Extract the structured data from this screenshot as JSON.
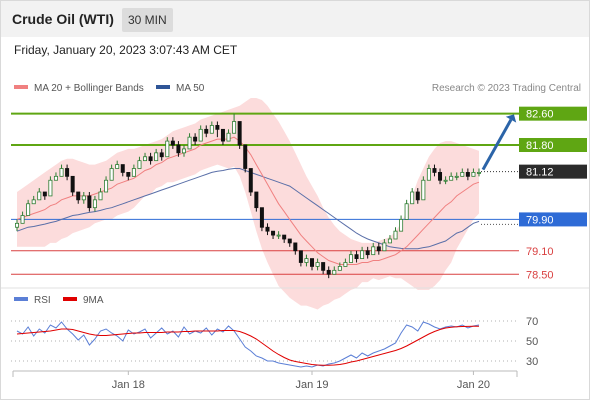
{
  "header": {
    "title": "Crude Oil (WTI)",
    "timeframe": "30 MIN",
    "datetime": "Friday, January 20, 2023 3:07:43 AM CET"
  },
  "legend": {
    "items": [
      {
        "label": "MA 20 + Bollinger Bands",
        "color": "#f08080"
      },
      {
        "label": "MA 50",
        "color": "#2f5597"
      }
    ],
    "credit": "Research © 2023 Trading Central"
  },
  "rsi_legend": {
    "items": [
      {
        "label": "RSI",
        "color": "#5b7fd6"
      },
      {
        "label": "9MA",
        "color": "#e00000"
      }
    ]
  },
  "chart_data": [
    {
      "type": "candlestick",
      "y_range": [
        78.2,
        83.0
      ],
      "x_ticks": [
        "Jan 18",
        "Jan 19",
        "Jan 20"
      ],
      "levels": [
        {
          "value": 82.6,
          "label": "82.60",
          "type": "resistance"
        },
        {
          "value": 81.8,
          "label": "81.80",
          "type": "resistance"
        },
        {
          "value": 81.12,
          "label": "81.12",
          "type": "last"
        },
        {
          "value": 79.9,
          "label": "79.90",
          "type": "pivot"
        },
        {
          "value": 79.1,
          "label": "79.10",
          "type": "support"
        },
        {
          "value": 78.5,
          "label": "78.50",
          "type": "support"
        }
      ],
      "colors": {
        "up": "#2e7d32",
        "down": "#111111",
        "resistance": "#5fa613",
        "pivot": "#2e6bd6",
        "support": "#d94040",
        "last": "#333333",
        "arrow": "#2b64a8",
        "band": "#fcdcdc",
        "ma20": "#f08080",
        "ma50": "#5a6fa8"
      },
      "close": [
        79.8,
        80.0,
        80.3,
        80.4,
        80.6,
        80.5,
        80.9,
        81.0,
        81.2,
        81.0,
        80.6,
        80.4,
        80.5,
        80.2,
        80.4,
        80.6,
        80.9,
        81.2,
        81.3,
        81.1,
        81.0,
        81.2,
        81.4,
        81.5,
        81.4,
        81.6,
        81.5,
        81.9,
        81.8,
        81.6,
        81.7,
        82.0,
        81.9,
        82.2,
        82.1,
        82.3,
        82.2,
        81.9,
        82.1,
        82.4,
        81.8,
        81.2,
        80.6,
        80.2,
        79.7,
        79.6,
        79.5,
        79.5,
        79.4,
        79.3,
        79.1,
        78.8,
        78.9,
        78.7,
        78.8,
        78.6,
        78.5,
        78.6,
        78.7,
        78.8,
        79.0,
        78.9,
        79.1,
        79.0,
        79.2,
        79.1,
        79.3,
        79.4,
        79.6,
        79.9,
        80.3,
        80.6,
        80.4,
        80.9,
        81.2,
        81.1,
        80.9,
        80.9,
        81.0,
        81.0,
        81.1,
        81.0,
        81.1,
        81.1
      ],
      "high": [
        79.9,
        80.1,
        80.4,
        80.5,
        80.7,
        80.6,
        81.0,
        81.1,
        81.3,
        81.3,
        81.0,
        80.6,
        80.6,
        80.6,
        80.5,
        80.7,
        81.0,
        81.3,
        81.4,
        81.3,
        81.1,
        81.3,
        81.5,
        81.6,
        81.6,
        81.7,
        81.7,
        82.0,
        82.0,
        81.9,
        81.8,
        82.1,
        82.1,
        82.3,
        82.3,
        82.4,
        82.4,
        82.2,
        82.2,
        82.6,
        82.4,
        81.8,
        81.2,
        80.6,
        80.2,
        79.8,
        79.6,
        79.6,
        79.5,
        79.4,
        79.3,
        79.1,
        79.0,
        78.9,
        78.9,
        78.8,
        78.7,
        78.7,
        78.8,
        78.9,
        79.1,
        79.1,
        79.2,
        79.2,
        79.3,
        79.3,
        79.4,
        79.5,
        79.7,
        80.0,
        80.4,
        80.7,
        80.7,
        81.0,
        81.3,
        81.3,
        81.2,
        81.0,
        81.1,
        81.1,
        81.2,
        81.2,
        81.2,
        81.2
      ],
      "low": [
        79.6,
        79.8,
        80.0,
        80.3,
        80.4,
        80.4,
        80.5,
        80.9,
        81.0,
        80.9,
        80.5,
        80.3,
        80.3,
        80.1,
        80.1,
        80.4,
        80.6,
        80.9,
        81.2,
        81.0,
        80.9,
        81.0,
        81.2,
        81.4,
        81.3,
        81.4,
        81.4,
        81.5,
        81.7,
        81.5,
        81.5,
        81.7,
        81.8,
        81.9,
        82.0,
        82.1,
        82.0,
        81.8,
        81.9,
        82.1,
        81.7,
        81.1,
        80.5,
        80.1,
        79.6,
        79.5,
        79.4,
        79.4,
        79.3,
        79.2,
        79.0,
        78.7,
        78.7,
        78.6,
        78.6,
        78.5,
        78.4,
        78.5,
        78.6,
        78.7,
        78.8,
        78.8,
        78.9,
        78.9,
        79.0,
        79.0,
        79.1,
        79.3,
        79.4,
        79.6,
        79.9,
        80.3,
        80.3,
        80.4,
        80.9,
        81.0,
        80.8,
        80.8,
        80.9,
        80.9,
        81.0,
        80.9,
        81.0,
        81.0
      ],
      "ma20": [
        79.9,
        79.95,
        80.0,
        80.05,
        80.1,
        80.15,
        80.25,
        80.3,
        80.4,
        80.45,
        80.5,
        80.5,
        80.5,
        80.5,
        80.55,
        80.6,
        80.65,
        80.7,
        80.8,
        80.85,
        80.9,
        80.95,
        81.05,
        81.15,
        81.2,
        81.3,
        81.35,
        81.45,
        81.5,
        81.55,
        81.6,
        81.65,
        81.7,
        81.8,
        81.85,
        81.9,
        81.95,
        81.95,
        81.95,
        82.0,
        81.9,
        81.75,
        81.55,
        81.3,
        81.05,
        80.8,
        80.55,
        80.3,
        80.1,
        79.9,
        79.7,
        79.5,
        79.35,
        79.2,
        79.05,
        78.95,
        78.85,
        78.8,
        78.75,
        78.75,
        78.75,
        78.75,
        78.8,
        78.8,
        78.85,
        78.85,
        78.9,
        78.95,
        79.0,
        79.1,
        79.2,
        79.35,
        79.5,
        79.65,
        79.8,
        79.95,
        80.1,
        80.25,
        80.35,
        80.5,
        80.6,
        80.7,
        80.8,
        80.85
      ],
      "ma50": [
        79.6,
        79.65,
        79.7,
        79.72,
        79.75,
        79.78,
        79.82,
        79.85,
        79.9,
        79.95,
        80.0,
        80.02,
        80.05,
        80.08,
        80.1,
        80.13,
        80.17,
        80.2,
        80.25,
        80.3,
        80.35,
        80.4,
        80.45,
        80.5,
        80.55,
        80.6,
        80.65,
        80.7,
        80.75,
        80.8,
        80.85,
        80.9,
        80.95,
        81.0,
        81.05,
        81.1,
        81.13,
        81.15,
        81.18,
        81.2,
        81.2,
        81.15,
        81.1,
        81.05,
        81.0,
        80.95,
        80.9,
        80.85,
        80.8,
        80.75,
        80.65,
        80.55,
        80.45,
        80.35,
        80.25,
        80.15,
        80.05,
        79.95,
        79.85,
        79.75,
        79.65,
        79.55,
        79.47,
        79.4,
        79.35,
        79.3,
        79.25,
        79.2,
        79.18,
        79.16,
        79.15,
        79.15,
        79.15,
        79.18,
        79.2,
        79.25,
        79.3,
        79.35,
        79.45,
        79.55,
        79.6,
        79.7,
        79.8,
        79.85
      ],
      "bb_upper": [
        80.6,
        80.7,
        80.8,
        80.9,
        81.0,
        81.1,
        81.2,
        81.3,
        81.4,
        81.45,
        81.45,
        81.4,
        81.35,
        81.3,
        81.3,
        81.35,
        81.4,
        81.5,
        81.6,
        81.65,
        81.7,
        81.7,
        81.75,
        81.8,
        81.85,
        81.9,
        81.95,
        82.05,
        82.15,
        82.2,
        82.25,
        82.3,
        82.35,
        82.45,
        82.5,
        82.55,
        82.6,
        82.65,
        82.7,
        82.75,
        82.8,
        82.9,
        83.0,
        83.0,
        82.95,
        82.8,
        82.6,
        82.4,
        82.15,
        81.9,
        81.6,
        81.3,
        81.0,
        80.75,
        80.5,
        80.2,
        79.95,
        79.75,
        79.6,
        79.5,
        79.4,
        79.35,
        79.3,
        79.3,
        79.3,
        79.35,
        79.4,
        79.45,
        79.6,
        79.8,
        80.1,
        80.5,
        80.9,
        81.2,
        81.5,
        81.7,
        81.85,
        81.9,
        81.9,
        81.85,
        81.8,
        81.75,
        81.7,
        81.65
      ],
      "bb_lower": [
        79.2,
        79.2,
        79.2,
        79.2,
        79.2,
        79.2,
        79.3,
        79.3,
        79.4,
        79.45,
        79.55,
        79.6,
        79.65,
        79.7,
        79.8,
        79.85,
        79.9,
        79.9,
        80.0,
        80.05,
        80.1,
        80.2,
        80.35,
        80.5,
        80.55,
        80.7,
        80.75,
        80.85,
        80.85,
        80.9,
        80.95,
        81.0,
        81.05,
        81.15,
        81.2,
        81.25,
        81.3,
        81.25,
        81.2,
        81.25,
        81.0,
        80.6,
        80.1,
        79.6,
        79.15,
        78.8,
        78.5,
        78.2,
        78.05,
        77.9,
        77.8,
        77.7,
        77.7,
        77.65,
        77.6,
        77.7,
        77.75,
        77.85,
        77.9,
        78.0,
        78.1,
        78.15,
        78.3,
        78.3,
        78.4,
        78.35,
        78.4,
        78.45,
        78.4,
        78.4,
        78.3,
        78.2,
        78.1,
        78.1,
        78.1,
        78.2,
        78.35,
        78.6,
        78.8,
        79.15,
        79.4,
        79.65,
        79.9,
        80.05
      ]
    },
    {
      "type": "line",
      "y_range": [
        20,
        80
      ],
      "y_ticks": [
        70,
        50,
        30
      ],
      "x_ticks": [
        "Jan 18",
        "Jan 19",
        "Jan 20"
      ],
      "series": [
        {
          "name": "RSI",
          "values": [
            60,
            57,
            64,
            55,
            62,
            58,
            66,
            63,
            69,
            62,
            57,
            51,
            56,
            46,
            52,
            60,
            62,
            58,
            55,
            50,
            61,
            57,
            59,
            62,
            53,
            58,
            63,
            57,
            60,
            54,
            64,
            57,
            60,
            58,
            63,
            56,
            62,
            59,
            65,
            60,
            52,
            44,
            40,
            35,
            33,
            30,
            30,
            28,
            27,
            26,
            25,
            24,
            25,
            24,
            26,
            25,
            27,
            28,
            30,
            33,
            36,
            33,
            38,
            35,
            38,
            40,
            42,
            45,
            48,
            58,
            66,
            64,
            60,
            69,
            67,
            64,
            62,
            64,
            65,
            64,
            66,
            63,
            65,
            66
          ]
        },
        {
          "name": "9MA",
          "values": [
            57,
            57.5,
            58,
            58.5,
            59,
            59.5,
            60,
            61,
            62,
            62,
            61.5,
            60,
            58.5,
            57,
            56,
            55.5,
            55.5,
            56,
            56.5,
            57,
            57.5,
            58,
            58,
            58.5,
            58.5,
            58.5,
            58.5,
            59,
            59,
            59,
            59.5,
            59.5,
            60,
            60,
            60,
            60,
            60,
            60.5,
            60.5,
            60.5,
            59.5,
            57.5,
            55,
            52,
            48,
            44,
            40,
            36.5,
            33.5,
            31,
            29.5,
            28.5,
            27.5,
            26.5,
            26,
            25.8,
            25.8,
            26,
            26.5,
            27.5,
            29,
            30,
            31.5,
            33,
            34.5,
            36,
            37.5,
            39,
            40.5,
            42.5,
            45,
            48,
            51,
            54,
            57,
            59.5,
            61.5,
            63,
            63.8,
            64.2,
            64.5,
            64.6,
            64.7,
            64.8
          ]
        }
      ]
    }
  ]
}
